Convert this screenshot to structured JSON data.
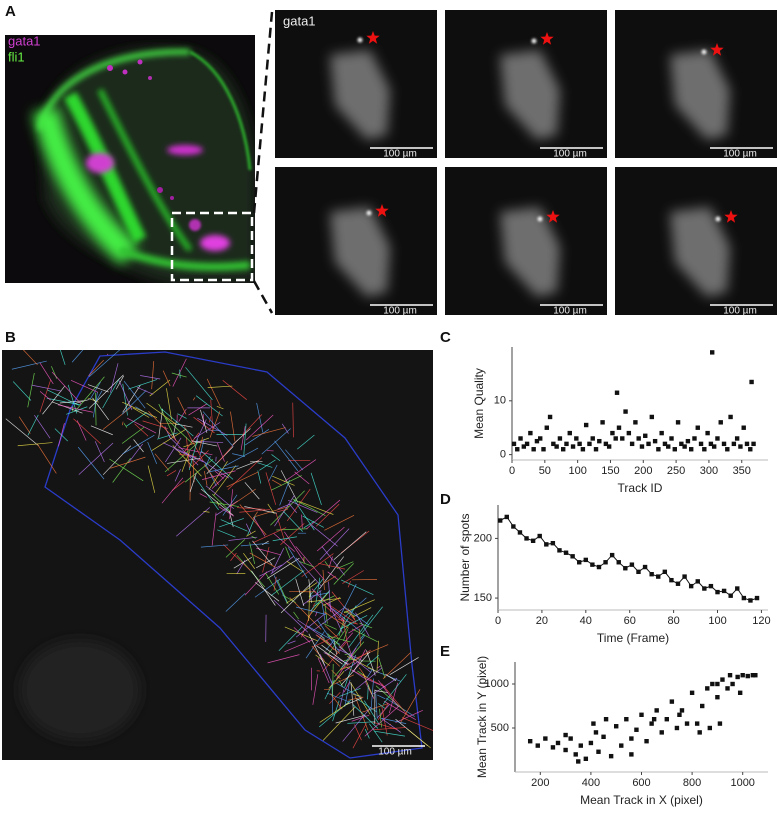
{
  "panel_labels": [
    "A",
    "B",
    "C",
    "D",
    "E"
  ],
  "panel_a": {
    "overview_labels": [
      "gata1",
      "fli1"
    ],
    "zoom_label": "gata1",
    "scale_bars": [
      "100 µm",
      "100 µm",
      "100 µm",
      "100 µm",
      "100 µm",
      "100 µm"
    ]
  },
  "panel_b": {
    "scale_bar": "100 µm"
  },
  "chart_data": [
    {
      "type": "scatter",
      "xlabel": "Track ID",
      "ylabel": "Mean Quality",
      "color": "#111111",
      "x": [
        3,
        8,
        13,
        18,
        23,
        28,
        33,
        38,
        43,
        48,
        53,
        58,
        63,
        68,
        73,
        78,
        83,
        88,
        93,
        98,
        103,
        108,
        113,
        118,
        123,
        128,
        133,
        138,
        143,
        148,
        153,
        158,
        160,
        163,
        168,
        173,
        178,
        183,
        188,
        193,
        198,
        203,
        208,
        213,
        218,
        223,
        228,
        233,
        238,
        243,
        248,
        253,
        258,
        263,
        268,
        273,
        278,
        283,
        288,
        293,
        298,
        303,
        305,
        308,
        313,
        318,
        323,
        328,
        333,
        338,
        343,
        348,
        353,
        358,
        363,
        365,
        368
      ],
      "y": [
        2,
        1,
        3,
        1.5,
        2,
        4,
        1,
        2.5,
        3,
        1,
        5,
        7,
        2,
        1.5,
        3,
        1,
        2,
        4,
        1.5,
        3,
        2,
        1,
        5.5,
        2,
        3,
        1,
        2.5,
        6,
        2,
        1.5,
        4,
        3,
        11.5,
        5,
        3,
        8,
        4,
        2,
        6,
        3,
        1.5,
        3.5,
        2,
        7,
        2.5,
        1,
        4,
        2,
        1.5,
        3,
        1,
        6,
        2,
        1.5,
        2.5,
        1,
        3,
        5,
        2,
        1,
        4,
        2,
        19,
        1.5,
        3,
        6,
        2,
        1,
        7,
        2,
        3,
        1.5,
        5,
        2,
        1,
        13.5,
        2
      ],
      "xlim": [
        0,
        390
      ],
      "ylim": [
        -1,
        20
      ],
      "xticks": [
        0,
        50,
        100,
        150,
        200,
        250,
        300,
        350
      ],
      "yticks": [
        0,
        10
      ]
    },
    {
      "type": "line",
      "xlabel": "Time (Frame)",
      "ylabel": "Number of spots",
      "color": "#111111",
      "x": [
        1,
        4,
        7,
        10,
        13,
        16,
        19,
        22,
        25,
        28,
        31,
        34,
        37,
        40,
        43,
        46,
        49,
        52,
        55,
        58,
        61,
        64,
        67,
        70,
        73,
        76,
        79,
        82,
        85,
        88,
        91,
        94,
        97,
        100,
        103,
        106,
        109,
        112,
        115,
        118
      ],
      "y": [
        215,
        218,
        210,
        205,
        200,
        198,
        202,
        195,
        196,
        190,
        188,
        185,
        180,
        182,
        178,
        176,
        180,
        186,
        180,
        175,
        178,
        172,
        176,
        170,
        168,
        172,
        165,
        162,
        168,
        160,
        164,
        158,
        160,
        155,
        156,
        152,
        158,
        150,
        148,
        150
      ],
      "xlim": [
        0,
        123
      ],
      "ylim": [
        140,
        228
      ],
      "xticks": [
        0,
        20,
        40,
        60,
        80,
        100,
        120
      ],
      "yticks": [
        150,
        200
      ]
    },
    {
      "type": "scatter",
      "xlabel": "Mean Track in X (pixel)",
      "ylabel": "Mean Track in Y (pixel)",
      "color": "#111111",
      "x": [
        160,
        190,
        220,
        250,
        270,
        300,
        320,
        340,
        360,
        380,
        400,
        410,
        430,
        450,
        460,
        480,
        500,
        520,
        540,
        560,
        580,
        600,
        620,
        640,
        660,
        680,
        700,
        720,
        740,
        760,
        780,
        800,
        820,
        840,
        860,
        870,
        880,
        900,
        910,
        920,
        940,
        950,
        960,
        980,
        1000,
        1020,
        1040,
        300,
        350,
        420,
        560,
        650,
        750,
        830,
        900,
        990,
        1050
      ],
      "y": [
        350,
        300,
        380,
        280,
        330,
        250,
        380,
        200,
        300,
        150,
        330,
        550,
        230,
        400,
        600,
        180,
        520,
        300,
        600,
        200,
        480,
        650,
        350,
        550,
        700,
        450,
        600,
        800,
        500,
        700,
        550,
        900,
        550,
        750,
        950,
        500,
        1000,
        850,
        550,
        1050,
        950,
        1100,
        1000,
        1080,
        1100,
        1090,
        1100,
        420,
        120,
        450,
        380,
        600,
        650,
        450,
        1000,
        900,
        1100
      ],
      "xlim": [
        100,
        1100
      ],
      "ylim": [
        0,
        1250
      ],
      "xticks": [
        200,
        400,
        600,
        800,
        1000
      ],
      "yticks": [
        500,
        1000
      ]
    }
  ]
}
